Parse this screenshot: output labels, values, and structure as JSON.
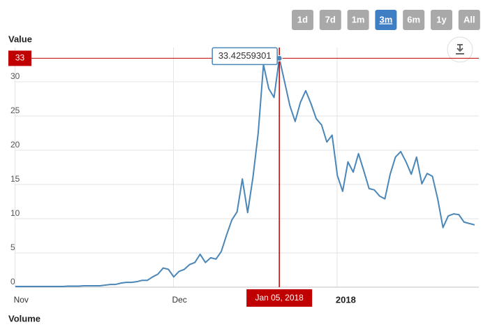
{
  "chart_data": {
    "type": "line",
    "range_buttons": [
      {
        "label": "1d",
        "selected": false
      },
      {
        "label": "7d",
        "selected": false
      },
      {
        "label": "1m",
        "selected": false
      },
      {
        "label": "3m",
        "selected": true
      },
      {
        "label": "6m",
        "selected": false
      },
      {
        "label": "1y",
        "selected": false
      },
      {
        "label": "All",
        "selected": false
      }
    ],
    "y_axis_title": "Value",
    "lower_panel_title": "Volume",
    "categories": [
      null,
      "Nov",
      null,
      null,
      null,
      null,
      null,
      null,
      null,
      null,
      null,
      null,
      null,
      null,
      null,
      null,
      null,
      null,
      null,
      null,
      null,
      null,
      null,
      null,
      null,
      null,
      null,
      null,
      null,
      null,
      null,
      "Dec",
      null,
      null,
      null,
      null,
      null,
      null,
      null,
      null,
      null,
      null,
      null,
      null,
      null,
      null,
      null,
      null,
      null,
      null,
      null,
      null,
      null,
      null,
      null,
      null,
      null,
      null,
      null,
      null,
      null,
      null,
      "2018",
      null,
      null,
      null,
      null,
      null,
      null,
      null,
      null,
      null,
      null,
      null,
      null,
      null,
      null,
      null,
      null,
      null,
      null,
      null,
      null,
      null,
      null,
      null,
      null,
      null
    ],
    "series": [
      {
        "name": "Value",
        "color": "#4a86b8",
        "values": [
          0.1,
          0.1,
          0.1,
          0.1,
          0.1,
          0.1,
          0.1,
          0.1,
          0.1,
          0.1,
          0.15,
          0.15,
          0.15,
          0.2,
          0.2,
          0.2,
          0.2,
          0.3,
          0.4,
          0.4,
          0.6,
          0.7,
          0.7,
          0.8,
          1.0,
          1.0,
          1.5,
          1.9,
          2.8,
          2.6,
          1.5,
          2.3,
          2.6,
          3.3,
          3.6,
          4.8,
          3.6,
          4.3,
          4.1,
          5.2,
          7.6,
          9.8,
          11.0,
          15.8,
          10.9,
          16.0,
          22.5,
          32.5,
          29.0,
          27.7,
          33.42559301,
          30.0,
          26.5,
          24.2,
          27.0,
          28.7,
          26.8,
          24.6,
          23.7,
          21.2,
          22.2,
          16.3,
          14.0,
          18.3,
          16.8,
          19.5,
          17.0,
          14.4,
          14.2,
          13.3,
          12.9,
          16.5,
          19.0,
          19.8,
          18.3,
          16.5,
          19.0,
          15.1,
          16.6,
          16.2,
          12.9,
          8.7,
          10.4,
          10.7,
          10.6,
          9.5,
          9.3,
          9.1
        ]
      }
    ],
    "ylim": [
      0,
      35
    ],
    "yticks": [
      0,
      5,
      10,
      15,
      20,
      25,
      30
    ],
    "grid": true,
    "crosshair": {
      "value": 33.42559301,
      "tooltip_label": "33.42559301",
      "y_label": "33",
      "x_label": "Jan 05, 2018",
      "color": "#c00000"
    }
  }
}
